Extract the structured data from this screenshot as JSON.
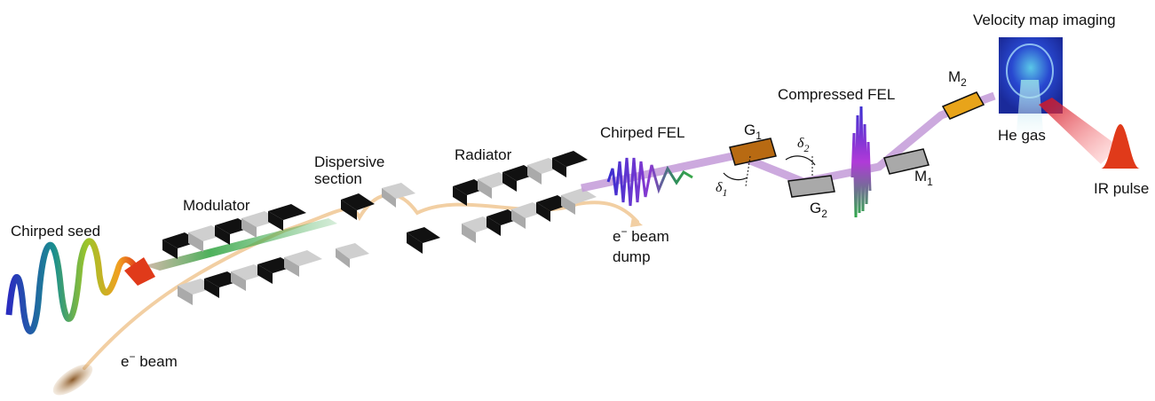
{
  "labels": {
    "chirped_seed": "Chirped seed",
    "e_beam": "e",
    "e_beam_rest": " beam",
    "modulator": "Modulator",
    "dispersive_1": "Dispersive",
    "dispersive_2": "section",
    "radiator": "Radiator",
    "dump_1": "e",
    "dump_1_rest": " beam",
    "dump_2": "dump",
    "chirped_fel": "Chirped FEL",
    "g1": "G",
    "g1_sub": "1",
    "delta1": "δ",
    "delta1_sub": "1",
    "compressed_fel": "Compressed FEL",
    "delta2": "δ",
    "delta2_sub": "2",
    "g2": "G",
    "g2_sub": "2",
    "m1": "M",
    "m1_sub": "1",
    "m2": "M",
    "m2_sub": "2",
    "vmi": "Velocity map imaging",
    "he_gas": "He gas",
    "ir_pulse": "IR pulse",
    "minus": "−"
  },
  "colors": {
    "e_beam_path": "#f2cfa3",
    "fel_beam": "#c39ad8",
    "seed_beam": "#49b35a",
    "magnet_dark": "#111111",
    "magnet_light": "#cfcfcf",
    "grating": "#b86a12",
    "vmi_blue": "#1f46c8",
    "ir_red": "#e03a1a"
  }
}
